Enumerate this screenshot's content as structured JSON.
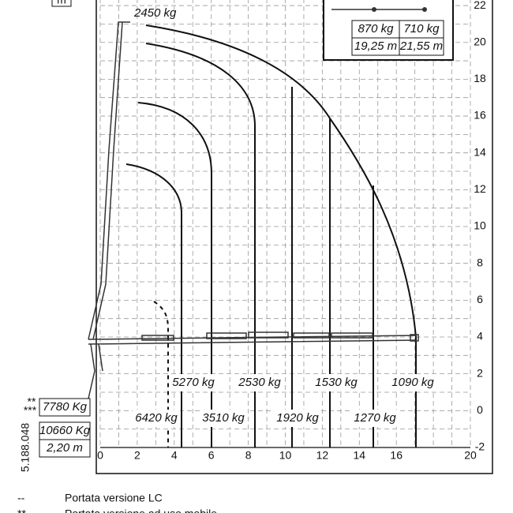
{
  "header": {
    "unit": "m",
    "doc_code": "5.188.048"
  },
  "axes": {
    "y_labels": [
      "22",
      "20",
      "18",
      "16",
      "14",
      "12",
      "10",
      "8",
      "6",
      "4",
      "2",
      "0",
      "-2"
    ],
    "x_labels": [
      "0",
      "2",
      "4",
      "6",
      "8",
      "10",
      "12",
      "14",
      "16",
      "20"
    ]
  },
  "loads": {
    "top": "2450 kg",
    "upper_row": [
      "5270 kg",
      "2530 kg",
      "1530 kg",
      "1090 kg"
    ],
    "lower_row": [
      "6420 kg",
      "3510 kg",
      "1920 kg",
      "1270 kg"
    ]
  },
  "inset": {
    "loads": [
      "870 kg",
      "710 kg"
    ],
    "reach": [
      "19,25 m",
      "21,55 m"
    ]
  },
  "left_table": {
    "marks": [
      "**",
      "***"
    ],
    "load": "7780 Kg",
    "load2": "10660 Kg",
    "width": "2,20 m"
  },
  "legend": [
    {
      "symbol": "--",
      "text": "Portata versione LC"
    },
    {
      "symbol": "**",
      "text": "Portata versione ad uso mobile"
    }
  ]
}
